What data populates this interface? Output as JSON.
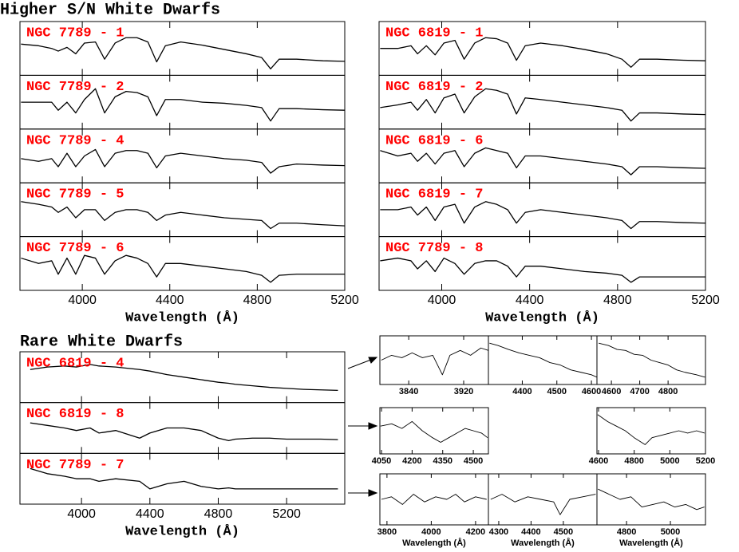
{
  "chart_data": [
    {
      "type": "line",
      "title": "Higher S/N White Dwarfs",
      "xlabel": "Wavelength (Å)",
      "color": "#000000",
      "label_color": "#ff0000",
      "xlim": [
        3715,
        5200
      ],
      "xticks": [
        4000,
        4400,
        4800,
        5200
      ],
      "ylim": [
        0,
        1
      ],
      "x": [
        3720,
        3800,
        3860,
        3890,
        3930,
        3970,
        4010,
        4060,
        4102,
        4150,
        4200,
        4250,
        4300,
        4340,
        4380,
        4450,
        4550,
        4650,
        4750,
        4820,
        4861,
        4900,
        4980,
        5100,
        5200
      ],
      "series": [
        {
          "name": "NGC 7789 - 1",
          "values": [
            0.58,
            0.55,
            0.5,
            0.45,
            0.52,
            0.4,
            0.6,
            0.62,
            0.3,
            0.6,
            0.7,
            0.7,
            0.62,
            0.25,
            0.55,
            0.62,
            0.56,
            0.48,
            0.4,
            0.33,
            0.12,
            0.3,
            0.3,
            0.27,
            0.26
          ]
        },
        {
          "name": "NGC 7789 - 2",
          "values": [
            0.5,
            0.5,
            0.5,
            0.35,
            0.5,
            0.3,
            0.55,
            0.75,
            0.3,
            0.6,
            0.7,
            0.68,
            0.6,
            0.25,
            0.55,
            0.55,
            0.5,
            0.48,
            0.44,
            0.4,
            0.15,
            0.38,
            0.38,
            0.36,
            0.35
          ]
        },
        {
          "name": "NGC 7789 - 4",
          "values": [
            0.45,
            0.4,
            0.45,
            0.3,
            0.55,
            0.3,
            0.5,
            0.62,
            0.3,
            0.55,
            0.6,
            0.6,
            0.55,
            0.28,
            0.5,
            0.55,
            0.5,
            0.45,
            0.42,
            0.38,
            0.18,
            0.3,
            0.35,
            0.33,
            0.32
          ]
        },
        {
          "name": "NGC 7789 - 5",
          "values": [
            0.65,
            0.6,
            0.55,
            0.45,
            0.55,
            0.35,
            0.5,
            0.5,
            0.3,
            0.45,
            0.5,
            0.5,
            0.45,
            0.3,
            0.4,
            0.45,
            0.4,
            0.35,
            0.32,
            0.3,
            0.15,
            0.25,
            0.25,
            0.22,
            0.2
          ]
        },
        {
          "name": "NGC 7789 - 6",
          "values": [
            0.6,
            0.5,
            0.55,
            0.3,
            0.6,
            0.3,
            0.65,
            0.6,
            0.3,
            0.55,
            0.65,
            0.6,
            0.5,
            0.25,
            0.5,
            0.5,
            0.45,
            0.4,
            0.35,
            0.28,
            0.15,
            0.28,
            0.3,
            0.3,
            0.3
          ]
        }
      ]
    },
    {
      "type": "line",
      "xlabel": "Wavelength (Å)",
      "color": "#000000",
      "label_color": "#ff0000",
      "xlim": [
        3715,
        5200
      ],
      "xticks": [
        4000,
        4400,
        4800,
        5200
      ],
      "ylim": [
        0,
        1
      ],
      "x": [
        3720,
        3800,
        3860,
        3890,
        3930,
        3970,
        4010,
        4060,
        4102,
        4150,
        4200,
        4250,
        4300,
        4340,
        4380,
        4450,
        4550,
        4650,
        4750,
        4820,
        4861,
        4900,
        4980,
        5100,
        5200
      ],
      "series": [
        {
          "name": "NGC 6819 - 1",
          "values": [
            0.5,
            0.5,
            0.55,
            0.4,
            0.55,
            0.38,
            0.6,
            0.65,
            0.3,
            0.6,
            0.7,
            0.68,
            0.6,
            0.28,
            0.55,
            0.6,
            0.55,
            0.48,
            0.4,
            0.3,
            0.15,
            0.3,
            0.3,
            0.28,
            0.27
          ]
        },
        {
          "name": "NGC 6819 - 2",
          "values": [
            0.4,
            0.45,
            0.5,
            0.35,
            0.55,
            0.3,
            0.58,
            0.65,
            0.3,
            0.6,
            0.75,
            0.72,
            0.65,
            0.28,
            0.58,
            0.55,
            0.5,
            0.45,
            0.4,
            0.35,
            0.15,
            0.3,
            0.3,
            0.28,
            0.27
          ]
        },
        {
          "name": "NGC 6819 - 6",
          "values": [
            0.6,
            0.5,
            0.55,
            0.4,
            0.55,
            0.35,
            0.55,
            0.6,
            0.3,
            0.55,
            0.65,
            0.6,
            0.55,
            0.28,
            0.5,
            0.5,
            0.45,
            0.4,
            0.35,
            0.3,
            0.15,
            0.3,
            0.3,
            0.28,
            0.27
          ]
        },
        {
          "name": "NGC 6819 - 7",
          "values": [
            0.5,
            0.5,
            0.55,
            0.4,
            0.55,
            0.3,
            0.55,
            0.6,
            0.25,
            0.55,
            0.65,
            0.6,
            0.5,
            0.25,
            0.45,
            0.5,
            0.45,
            0.4,
            0.35,
            0.3,
            0.15,
            0.28,
            0.28,
            0.26,
            0.25
          ]
        },
        {
          "name": "NGC 7789 - 8",
          "values": [
            0.55,
            0.6,
            0.55,
            0.4,
            0.55,
            0.35,
            0.6,
            0.5,
            0.3,
            0.5,
            0.55,
            0.55,
            0.45,
            0.25,
            0.45,
            0.45,
            0.4,
            0.35,
            0.32,
            0.28,
            0.15,
            0.25,
            0.25,
            0.25,
            0.25
          ]
        }
      ]
    },
    {
      "type": "line",
      "title": "Rare White Dwarfs",
      "xlabel": "Wavelength (Å)",
      "color": "#000000",
      "label_color": "#ff0000",
      "xlim": [
        3640,
        5540
      ],
      "xticks": [
        4000,
        4400,
        4800,
        5200
      ],
      "ylim": [
        0,
        1
      ],
      "x": [
        3700,
        3800,
        3900,
        3970,
        4050,
        4102,
        4200,
        4340,
        4400,
        4500,
        4600,
        4700,
        4800,
        4861,
        4900,
        5000,
        5100,
        5200,
        5300,
        5400,
        5500
      ],
      "series": [
        {
          "name": "NGC 6819 - 4",
          "values": [
            0.65,
            0.7,
            0.72,
            0.7,
            0.75,
            0.72,
            0.7,
            0.65,
            0.62,
            0.55,
            0.5,
            0.45,
            0.4,
            0.38,
            0.36,
            0.33,
            0.3,
            0.28,
            0.26,
            0.25,
            0.24
          ]
        },
        {
          "name": "NGC 6819 - 8",
          "values": [
            0.6,
            0.55,
            0.5,
            0.45,
            0.5,
            0.4,
            0.45,
            0.3,
            0.4,
            0.5,
            0.5,
            0.45,
            0.3,
            0.25,
            0.28,
            0.3,
            0.3,
            0.28,
            0.28,
            0.28,
            0.27
          ]
        },
        {
          "name": "NGC 7789 - 7",
          "values": [
            0.7,
            0.6,
            0.55,
            0.5,
            0.5,
            0.45,
            0.5,
            0.45,
            0.3,
            0.4,
            0.45,
            0.35,
            0.3,
            0.32,
            0.3,
            0.3,
            0.3,
            0.3,
            0.3,
            0.3,
            0.3
          ]
        }
      ]
    },
    {
      "type": "line",
      "color": "#000000",
      "xlim": [
        3798,
        3956
      ],
      "xticks": [
        3840,
        3920
      ],
      "ylim": [
        0,
        1
      ],
      "x": [
        3800,
        3815,
        3830,
        3845,
        3860,
        3875,
        3889,
        3900,
        3915,
        3930,
        3945,
        3956
      ],
      "values": [
        0.5,
        0.6,
        0.55,
        0.65,
        0.55,
        0.6,
        0.2,
        0.6,
        0.7,
        0.6,
        0.75,
        0.7
      ]
    },
    {
      "type": "line",
      "color": "#000000",
      "xlim": [
        4302,
        4616
      ],
      "xticks": [
        4400,
        4500,
        4600
      ],
      "ylim": [
        0,
        1
      ],
      "x": [
        4305,
        4330,
        4360,
        4390,
        4420,
        4450,
        4480,
        4510,
        4540,
        4570,
        4600,
        4616
      ],
      "values": [
        0.85,
        0.8,
        0.72,
        0.65,
        0.6,
        0.55,
        0.45,
        0.4,
        0.3,
        0.25,
        0.2,
        0.15
      ]
    },
    {
      "type": "line",
      "color": "#000000",
      "xlim": [
        4549,
        4932
      ],
      "xticks": [
        4600,
        4700,
        4800
      ],
      "ylim": [
        0,
        1
      ],
      "x": [
        4555,
        4590,
        4620,
        4650,
        4680,
        4710,
        4740,
        4770,
        4800,
        4830,
        4860,
        4900,
        4930
      ],
      "values": [
        0.85,
        0.8,
        0.72,
        0.7,
        0.62,
        0.6,
        0.5,
        0.45,
        0.4,
        0.3,
        0.25,
        0.2,
        0.15
      ]
    },
    {
      "type": "line",
      "color": "#000000",
      "xlim": [
        4042,
        4574
      ],
      "xticks": [
        4050,
        4200,
        4350,
        4500
      ],
      "ylim": [
        0,
        1
      ],
      "x": [
        4045,
        4100,
        4150,
        4200,
        4250,
        4300,
        4340,
        4380,
        4420,
        4460,
        4500,
        4540,
        4570
      ],
      "values": [
        0.6,
        0.65,
        0.55,
        0.7,
        0.5,
        0.35,
        0.25,
        0.35,
        0.45,
        0.55,
        0.5,
        0.45,
        0.35
      ]
    },
    {
      "type": "line",
      "color": "#000000",
      "xlim": [
        4591,
        5200
      ],
      "xticks": [
        4600,
        4800,
        5000,
        5200
      ],
      "ylim": [
        0,
        1
      ],
      "x": [
        4595,
        4650,
        4700,
        4750,
        4800,
        4861,
        4900,
        4950,
        5000,
        5050,
        5100,
        5150,
        5195
      ],
      "values": [
        0.85,
        0.7,
        0.6,
        0.5,
        0.35,
        0.2,
        0.35,
        0.4,
        0.45,
        0.5,
        0.45,
        0.5,
        0.45
      ]
    },
    {
      "type": "line",
      "xlabel": "Wavelength (Å)",
      "color": "#000000",
      "xlim": [
        3768,
        4258
      ],
      "xticks": [
        3800,
        4000,
        4200
      ],
      "ylim": [
        0,
        1
      ],
      "x": [
        3775,
        3820,
        3870,
        3920,
        3970,
        4020,
        4070,
        4110,
        4150,
        4200,
        4250
      ],
      "values": [
        0.5,
        0.55,
        0.4,
        0.6,
        0.45,
        0.55,
        0.5,
        0.6,
        0.45,
        0.55,
        0.5
      ]
    },
    {
      "type": "line",
      "xlabel": "Wavelength (Å)",
      "color": "#000000",
      "xlim": [
        4268,
        4604
      ],
      "xticks": [
        4300,
        4400,
        4500
      ],
      "ylim": [
        0,
        1
      ],
      "x": [
        4275,
        4310,
        4350,
        4390,
        4430,
        4470,
        4490,
        4520,
        4560,
        4600
      ],
      "values": [
        0.5,
        0.6,
        0.45,
        0.55,
        0.5,
        0.45,
        0.2,
        0.5,
        0.55,
        0.6
      ]
    },
    {
      "type": "line",
      "xlabel": "Wavelength (Å)",
      "color": "#000000",
      "xlim": [
        4665,
        5160
      ],
      "xticks": [
        4800,
        5000
      ],
      "ylim": [
        0,
        1
      ],
      "x": [
        4670,
        4720,
        4770,
        4820,
        4870,
        4920,
        4970,
        5020,
        5070,
        5120,
        5155
      ],
      "values": [
        0.7,
        0.6,
        0.5,
        0.55,
        0.35,
        0.4,
        0.45,
        0.35,
        0.4,
        0.3,
        0.35
      ]
    }
  ]
}
